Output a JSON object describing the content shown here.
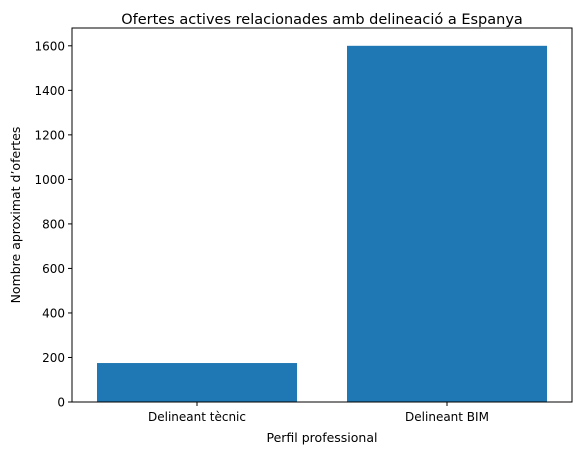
{
  "chart_data": {
    "type": "bar",
    "title": "Ofertes actives relacionades amb delineació a Espanya",
    "xlabel": "Perfil professional",
    "ylabel": "Nombre aproximat d’ofertes",
    "categories": [
      "Delineant tècnic",
      "Delineant BIM"
    ],
    "values": [
      175,
      1600
    ],
    "ylim": [
      0,
      1680
    ],
    "yticks": [
      0,
      200,
      400,
      600,
      800,
      1000,
      1200,
      1400,
      1600
    ],
    "bar_color": "#1f77b4",
    "grid": false,
    "legend": "none"
  }
}
